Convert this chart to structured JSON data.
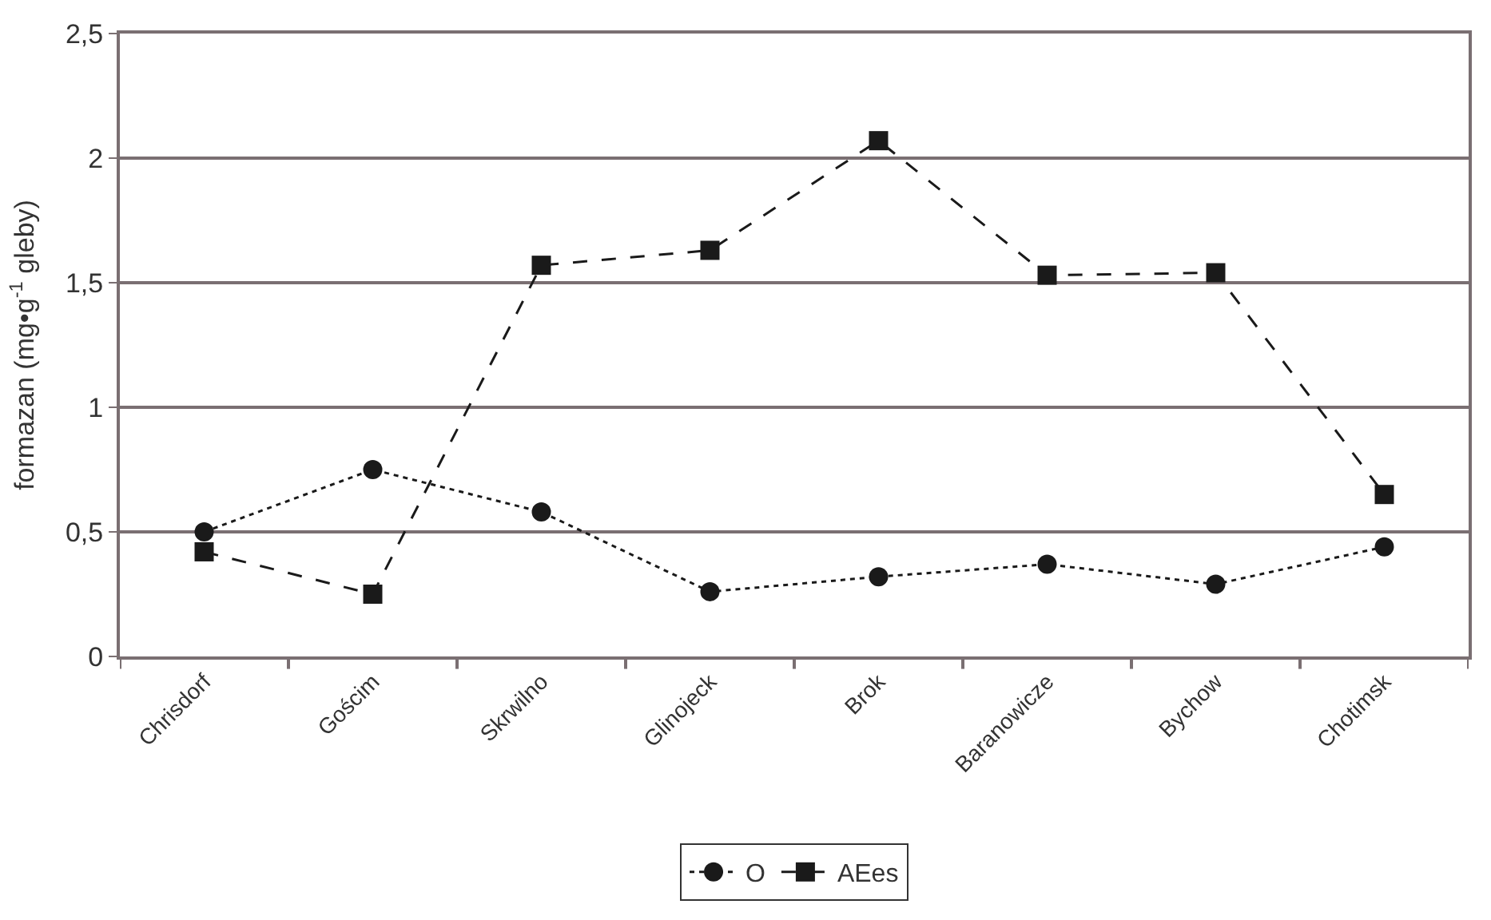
{
  "chart_data": {
    "type": "line",
    "ylabel": "formazan (mg•g$^{-1}$ gleby)",
    "categories": [
      "Chrisdorf",
      "Gościm",
      "Skrwilno",
      "Glinojeck",
      "Brok",
      "Baranowicze",
      "Bychow",
      "Chotimsk"
    ],
    "series": [
      {
        "name": "O",
        "color": "#1a1a1a",
        "marker": "circle",
        "line_style": "dotted",
        "values": [
          0.5,
          0.75,
          0.58,
          0.26,
          0.32,
          0.37,
          0.29,
          0.44
        ]
      },
      {
        "name": "AEes",
        "color": "#1a1a1a",
        "marker": "square",
        "line_style": "dashed",
        "values": [
          0.42,
          0.25,
          1.57,
          1.63,
          2.07,
          1.53,
          1.54,
          0.65
        ]
      }
    ],
    "ylim": [
      0,
      2.5
    ],
    "yticks": [
      0,
      {
        "value": 0.5,
        "label": "0,5"
      },
      1,
      {
        "value": 1.5,
        "label": "1,5"
      },
      2,
      {
        "value": 2.5,
        "label": "2,5"
      }
    ],
    "grid": "y",
    "legend": "bottom"
  }
}
